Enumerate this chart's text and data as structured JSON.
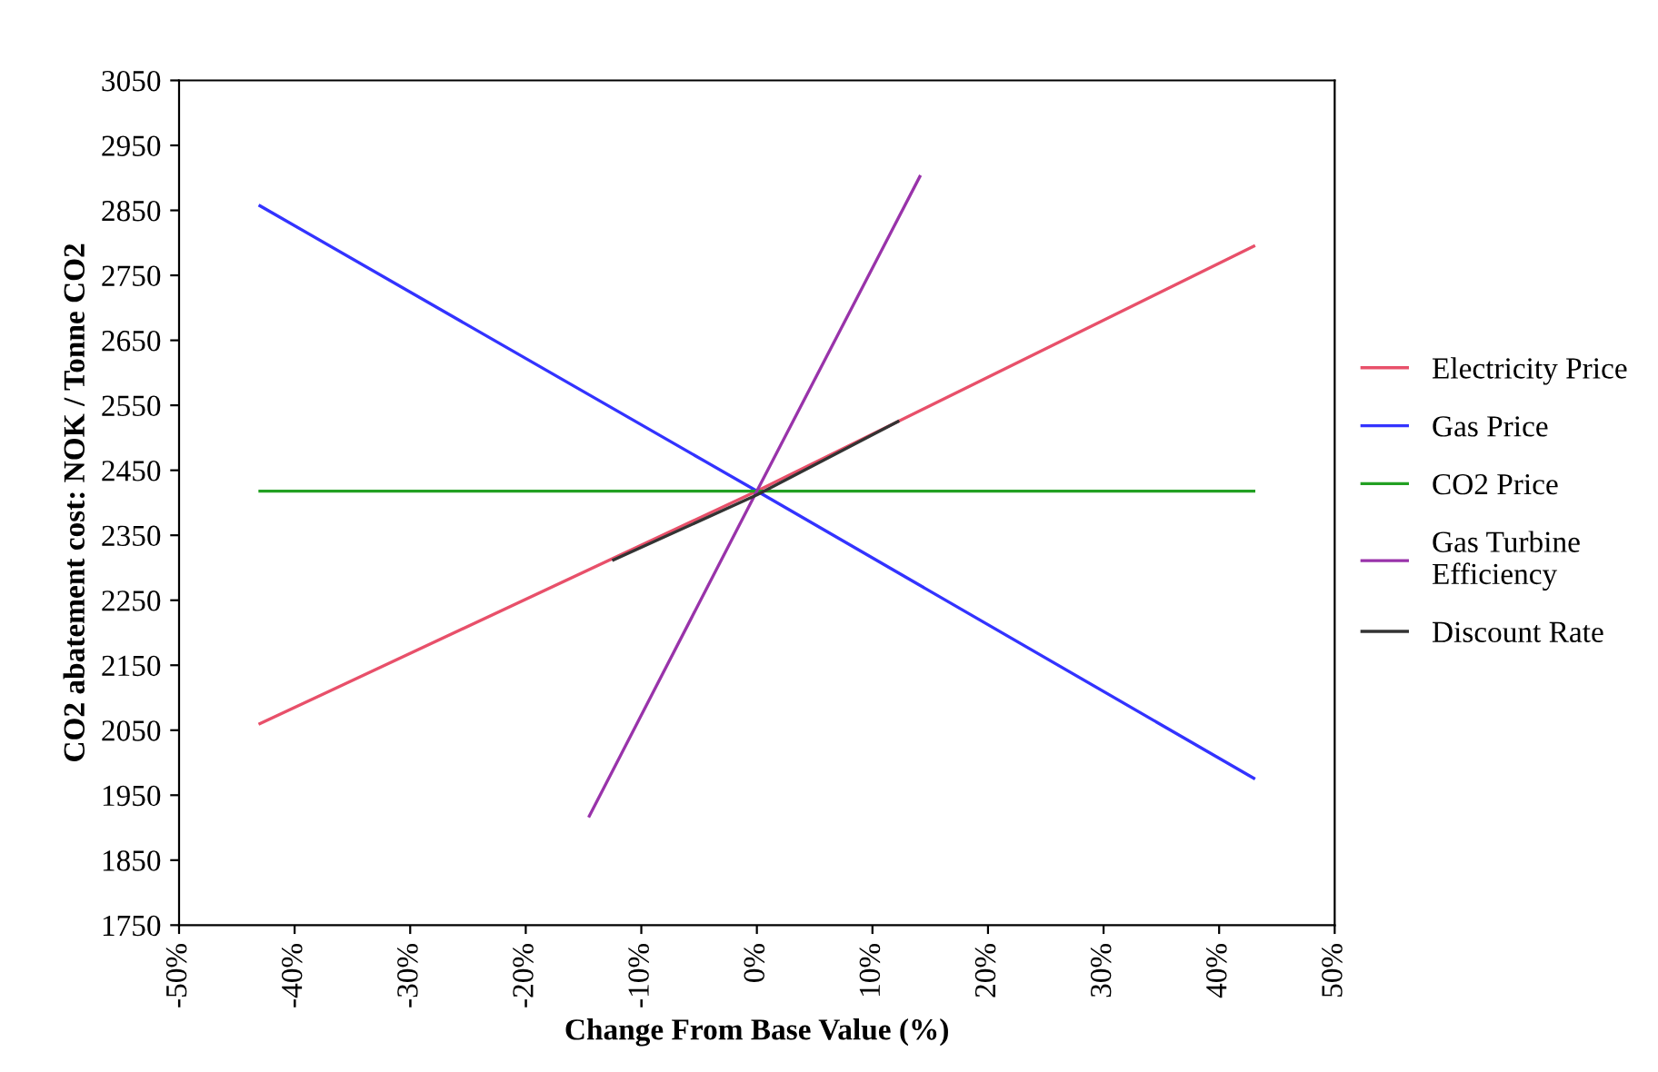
{
  "chart_data": {
    "type": "line",
    "xlabel": "Change From Base Value (%)",
    "ylabel": "CO2 abatement cost: NOK / Tonne CO2",
    "xlim": [
      -50,
      50
    ],
    "xticks": [
      {
        "value": -50,
        "label": "-50%"
      },
      {
        "value": -40,
        "label": "-40%"
      },
      {
        "value": -30,
        "label": "-30%"
      },
      {
        "value": -20,
        "label": "-20%"
      },
      {
        "value": -10,
        "label": "-10%"
      },
      {
        "value": 0,
        "label": "0%"
      },
      {
        "value": 10,
        "label": "10%"
      },
      {
        "value": 20,
        "label": "20%"
      },
      {
        "value": 30,
        "label": "30%"
      },
      {
        "value": 40,
        "label": "40%"
      },
      {
        "value": 50,
        "label": "50%"
      }
    ],
    "ylim": [
      1750,
      3050
    ],
    "yticks": [
      1750,
      1850,
      1950,
      2050,
      2150,
      2250,
      2350,
      2450,
      2550,
      2650,
      2750,
      2850,
      2950,
      3050
    ],
    "grid": false,
    "legend": "right",
    "marker": "none",
    "line_style": "solid",
    "series": [
      {
        "name": "Electricity Price",
        "color": "#e8506a",
        "x": [
          -43,
          0,
          43
        ],
        "values": [
          2060,
          2418,
          2795
        ]
      },
      {
        "name": "Gas Price",
        "color": "#3333ff",
        "x": [
          -43,
          0,
          43
        ],
        "values": [
          2857,
          2418,
          1976
        ]
      },
      {
        "name": "CO2 Price",
        "color": "#22a022",
        "x": [
          -43,
          0,
          43
        ],
        "values": [
          2418,
          2418,
          2418
        ]
      },
      {
        "name": "Gas Turbine\nEfficiency",
        "color": "#9933aa",
        "x": [
          -14.5,
          0,
          14.1
        ],
        "values": [
          1918,
          2418,
          2902
        ]
      },
      {
        "name": "Discount Rate",
        "color": "#333333",
        "x": [
          -12.4,
          0,
          12.2
        ],
        "values": [
          2312,
          2412,
          2525
        ]
      }
    ]
  }
}
